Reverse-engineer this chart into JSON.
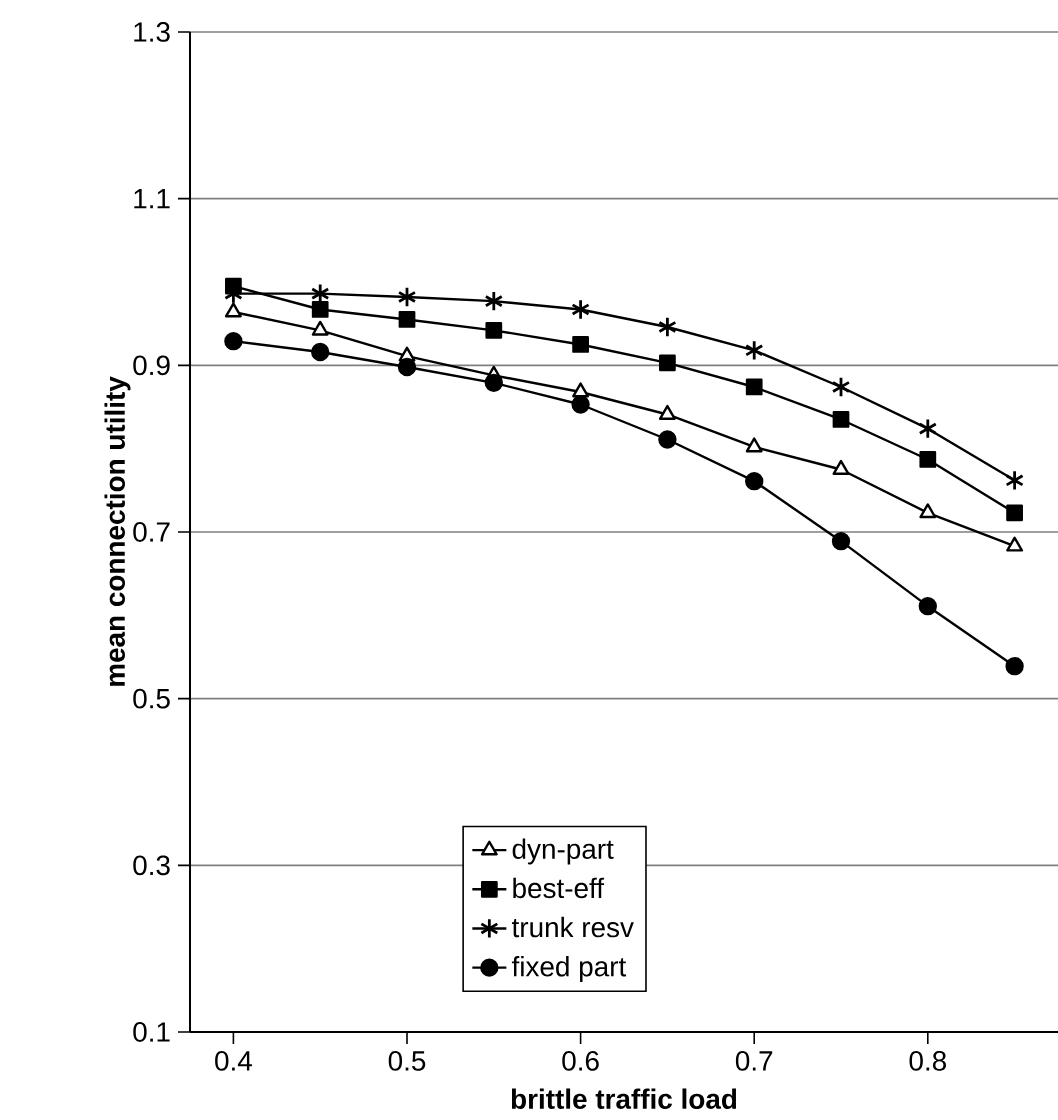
{
  "chart_data": {
    "type": "line",
    "xlabel": "brittle traffic load",
    "ylabel": "mean connection utility",
    "x": [
      0.4,
      0.45,
      0.5,
      0.55,
      0.6,
      0.65,
      0.7,
      0.75,
      0.8,
      0.85
    ],
    "series": [
      {
        "name": "dyn-part",
        "color": "#000000",
        "marker": "triangle",
        "values": [
          0.964,
          0.942,
          0.911,
          0.888,
          0.868,
          0.841,
          0.802,
          0.775,
          0.723,
          0.683
        ]
      },
      {
        "name": "best-eff",
        "color": "#000000",
        "marker": "square",
        "values": [
          0.995,
          0.967,
          0.955,
          0.942,
          0.925,
          0.903,
          0.874,
          0.835,
          0.787,
          0.723
        ]
      },
      {
        "name": "trunk resv",
        "color": "#000000",
        "marker": "cross",
        "values": [
          0.986,
          0.986,
          0.982,
          0.977,
          0.967,
          0.946,
          0.918,
          0.874,
          0.824,
          0.762
        ]
      },
      {
        "name": "fixed part",
        "color": "#000000",
        "marker": "circle",
        "values": [
          0.929,
          0.916,
          0.898,
          0.879,
          0.853,
          0.811,
          0.761,
          0.689,
          0.611,
          0.539
        ]
      }
    ],
    "xlim": [
      0.375,
      0.875
    ],
    "xticks": [
      0.4,
      0.5,
      0.6,
      0.7,
      0.8
    ],
    "ylim": [
      0.1,
      1.3
    ],
    "yticks": [
      0.1,
      0.3,
      0.5,
      0.7,
      0.9,
      1.1,
      1.3
    ],
    "grid": "y",
    "legend": "bottom",
    "line_style": "solid"
  }
}
